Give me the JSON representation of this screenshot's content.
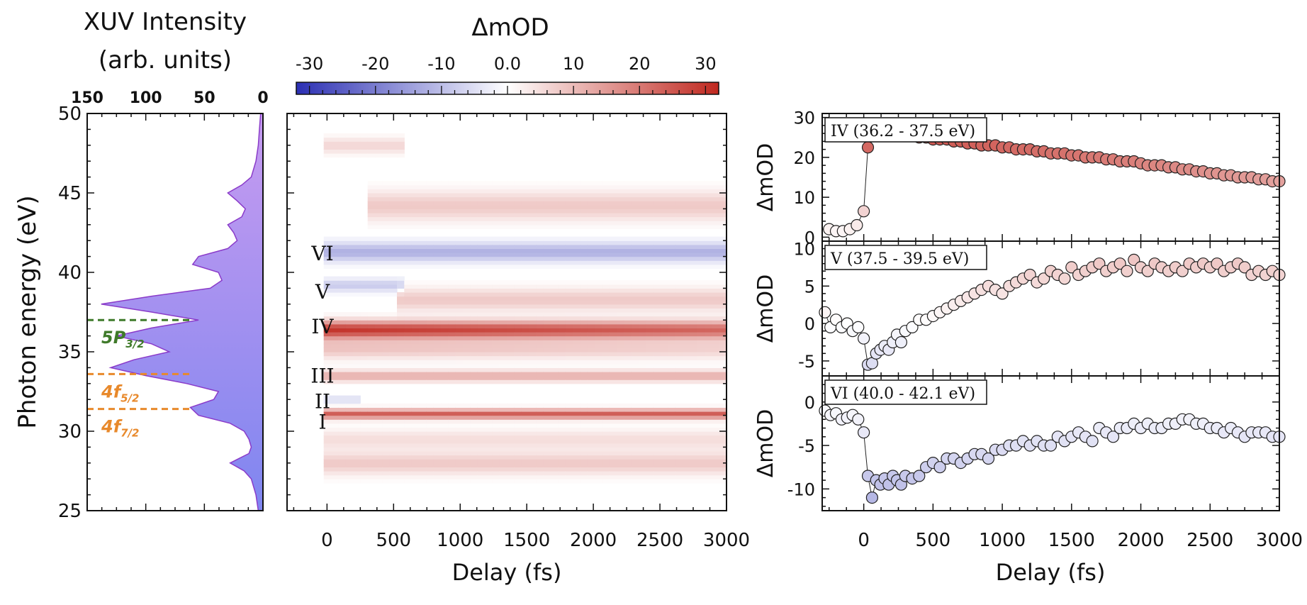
{
  "colors": {
    "neg": "#2b2fb3",
    "mid": "#ffffff",
    "pos": "#c0281f",
    "spectrum_fill_top": "#c79bf0",
    "spectrum_fill_bottom": "#7f86f0",
    "level_5p": "#3f7a2a",
    "level_4f": "#e8892b"
  },
  "chart_data": [
    {
      "type": "area",
      "name": "xuv-spectrum",
      "title": "XUV Intensity",
      "title_line2": "(arb. units)",
      "ylabel": "Photon energy (eV)",
      "xlim": [
        150,
        0
      ],
      "ylim": [
        25,
        50
      ],
      "x_ticks": [
        150,
        100,
        50,
        0
      ],
      "y_ticks": [
        25,
        30,
        35,
        40,
        45,
        50
      ],
      "energy": [
        25,
        26,
        27,
        27.5,
        28,
        28.3,
        28.6,
        29,
        29.5,
        30,
        30.5,
        31,
        31.5,
        32,
        32.5,
        33,
        33.5,
        34,
        34.5,
        35,
        35.5,
        36,
        36.5,
        37,
        37.5,
        38,
        38.5,
        39,
        39.5,
        40,
        40.5,
        41,
        41.5,
        42,
        42.5,
        43,
        43.5,
        44,
        44.5,
        45,
        45.5,
        46,
        47,
        48,
        49,
        50
      ],
      "intensity": [
        4,
        6,
        10,
        16,
        28,
        20,
        12,
        10,
        12,
        16,
        28,
        55,
        62,
        42,
        38,
        65,
        100,
        130,
        110,
        80,
        95,
        125,
        95,
        55,
        95,
        138,
        95,
        45,
        35,
        38,
        60,
        55,
        30,
        22,
        25,
        30,
        18,
        15,
        22,
        30,
        18,
        10,
        6,
        4,
        3,
        2
      ],
      "levels": [
        {
          "label": "5P",
          "sub": "3/2",
          "energy": 37.0,
          "color": "#3f7a2a"
        },
        {
          "label": "4f",
          "sub": "5/2",
          "energy": 33.6,
          "color": "#e8892b"
        },
        {
          "label": "4f",
          "sub": "7/2",
          "energy": 31.4,
          "color": "#e8892b"
        }
      ]
    },
    {
      "type": "heatmap",
      "name": "transient-absorption-map",
      "colorbar_label": "ΔmOD",
      "colorbar_ticks": [
        "-30",
        "-20",
        "-10",
        "0.0",
        "10",
        "20",
        "30"
      ],
      "colorbar_range": [
        -32,
        32
      ],
      "xlabel": "Delay (fs)",
      "xlim": [
        -300,
        3000
      ],
      "ylim": [
        25,
        50
      ],
      "x_ticks": [
        0,
        500,
        1000,
        1500,
        2000,
        2500,
        3000
      ],
      "band_labels": [
        {
          "label": "VI",
          "energy": 41.2
        },
        {
          "label": "V",
          "energy": 38.8
        },
        {
          "label": "IV",
          "energy": 36.6
        },
        {
          "label": "III",
          "energy": 33.5
        },
        {
          "label": "II",
          "energy": 31.9
        },
        {
          "label": "I",
          "energy": 30.6
        }
      ],
      "bands": [
        {
          "center": 48.0,
          "width": 0.5,
          "amp": 6,
          "tmin": 0,
          "tmax": 600
        },
        {
          "center": 44.2,
          "width": 0.9,
          "amp": 8,
          "tmin": 300,
          "tmax": 3000
        },
        {
          "center": 41.3,
          "width": 0.6,
          "amp": -12,
          "tmin": 0,
          "tmax": 3000
        },
        {
          "center": 39.2,
          "width": 0.4,
          "amp": -8,
          "tmin": 0,
          "tmax": 600
        },
        {
          "center": 38.3,
          "width": 0.7,
          "amp": 8,
          "tmin": 500,
          "tmax": 3000
        },
        {
          "center": 36.4,
          "width": 0.55,
          "amp": 30,
          "tmin": 0,
          "tmax": 3000
        },
        {
          "center": 35.2,
          "width": 0.6,
          "amp": 9,
          "tmin": 0,
          "tmax": 3000
        },
        {
          "center": 33.5,
          "width": 0.35,
          "amp": 12,
          "tmin": 0,
          "tmax": 3000
        },
        {
          "center": 32.0,
          "width": 0.2,
          "amp": -6,
          "tmin": 0,
          "tmax": 250
        },
        {
          "center": 31.1,
          "width": 0.3,
          "amp": 24,
          "tmin": 0,
          "tmax": 3000
        },
        {
          "center": 29.5,
          "width": 0.6,
          "amp": 5,
          "tmin": 0,
          "tmax": 3000
        },
        {
          "center": 28.0,
          "width": 0.7,
          "amp": 8,
          "tmin": 0,
          "tmax": 3000
        }
      ]
    },
    {
      "type": "scatter",
      "name": "kinetics-IV",
      "label": "IV (36.2 - 37.5 eV)",
      "ylabel": "ΔmOD",
      "xlim": [
        -300,
        3000
      ],
      "ylim": [
        -1,
        31
      ],
      "y_ticks": [
        0,
        10,
        20,
        30
      ],
      "x": [
        -250,
        -200,
        -150,
        -100,
        -50,
        0,
        30,
        60,
        90,
        120,
        150,
        180,
        210,
        240,
        270,
        300,
        350,
        400,
        450,
        500,
        550,
        600,
        650,
        700,
        750,
        800,
        850,
        900,
        950,
        1000,
        1050,
        1100,
        1150,
        1200,
        1250,
        1300,
        1350,
        1400,
        1450,
        1500,
        1550,
        1600,
        1650,
        1700,
        1750,
        1800,
        1850,
        1900,
        1950,
        2000,
        2050,
        2100,
        2150,
        2200,
        2250,
        2300,
        2350,
        2400,
        2450,
        2500,
        2550,
        2600,
        2650,
        2700,
        2750,
        2800,
        2850,
        2900,
        2950,
        3000
      ],
      "y": [
        2,
        1.5,
        1.5,
        2,
        3,
        6.5,
        22.5,
        26,
        27.5,
        27.5,
        27,
        26.5,
        26.5,
        26,
        26,
        25.5,
        25.5,
        25,
        25,
        24.5,
        24.5,
        24.5,
        24,
        24,
        23.5,
        23.5,
        23,
        23,
        23,
        22.5,
        22.5,
        22,
        22,
        22,
        21.5,
        21.5,
        21,
        21,
        21,
        20.5,
        20.5,
        20,
        20,
        20,
        19.5,
        19.5,
        19,
        19,
        19,
        18.5,
        18,
        18,
        18,
        17.5,
        17.5,
        17,
        17,
        16.5,
        16.5,
        16,
        16,
        15.5,
        15.5,
        15,
        15,
        15,
        14.5,
        14.5,
        14,
        14
      ]
    },
    {
      "type": "scatter",
      "name": "kinetics-V",
      "label": "V (37.5 - 39.5 eV)",
      "ylabel": "ΔmOD",
      "xlim": [
        -300,
        3000
      ],
      "ylim": [
        -7,
        11
      ],
      "y_ticks": [
        -5,
        0,
        5,
        10
      ],
      "x": [
        -280,
        -240,
        -200,
        -160,
        -120,
        -80,
        -40,
        0,
        30,
        60,
        90,
        120,
        150,
        180,
        210,
        240,
        270,
        300,
        350,
        400,
        450,
        500,
        550,
        600,
        650,
        700,
        750,
        800,
        850,
        900,
        950,
        1000,
        1050,
        1100,
        1150,
        1200,
        1250,
        1300,
        1350,
        1400,
        1450,
        1500,
        1550,
        1600,
        1650,
        1700,
        1750,
        1800,
        1850,
        1900,
        1950,
        2000,
        2050,
        2100,
        2150,
        2200,
        2250,
        2300,
        2350,
        2400,
        2450,
        2500,
        2550,
        2600,
        2650,
        2700,
        2750,
        2800,
        2850,
        2900,
        2950,
        3000
      ],
      "y": [
        1.5,
        -0.5,
        0.5,
        -0.5,
        0,
        -1,
        -0.5,
        -2,
        -5.5,
        -5.3,
        -4,
        -3.5,
        -3,
        -3.5,
        -2.5,
        -1.5,
        -2.5,
        -1,
        -0.5,
        0.5,
        0.5,
        1,
        1.5,
        2,
        2.5,
        3,
        3.5,
        4,
        4.5,
        5,
        4.5,
        4,
        5,
        5.5,
        6,
        6.5,
        5.5,
        6,
        7,
        6.5,
        6,
        7.5,
        6.5,
        7,
        7.5,
        8,
        7,
        7.5,
        8,
        7,
        8.5,
        7.5,
        7,
        8,
        7.5,
        7,
        7.5,
        7,
        8,
        7.5,
        8,
        7.5,
        8,
        7,
        7.5,
        8,
        7.5,
        6.5,
        7,
        6.5,
        7,
        6.5
      ]
    },
    {
      "type": "scatter",
      "name": "kinetics-VI",
      "label": "VI (40.0 - 42.1 eV)",
      "ylabel": "ΔmOD",
      "xlim": [
        -300,
        3000
      ],
      "ylim": [
        -12.5,
        3
      ],
      "y_ticks": [
        -10,
        -5,
        0
      ],
      "x": [
        -280,
        -240,
        -200,
        -160,
        -120,
        -80,
        -40,
        0,
        30,
        60,
        90,
        120,
        150,
        180,
        210,
        240,
        270,
        300,
        350,
        400,
        450,
        500,
        550,
        600,
        650,
        700,
        750,
        800,
        850,
        900,
        950,
        1000,
        1050,
        1100,
        1150,
        1200,
        1250,
        1300,
        1350,
        1400,
        1450,
        1500,
        1550,
        1600,
        1650,
        1700,
        1750,
        1800,
        1850,
        1900,
        1950,
        2000,
        2050,
        2100,
        2150,
        2200,
        2250,
        2300,
        2350,
        2400,
        2450,
        2500,
        2550,
        2600,
        2650,
        2700,
        2750,
        2800,
        2850,
        2900,
        2950,
        3000
      ],
      "y": [
        -1,
        -1.5,
        -1.3,
        -2,
        -1.8,
        -1.5,
        -2,
        -3.5,
        -8.5,
        -11,
        -9,
        -9.5,
        -8.8,
        -9.5,
        -8.5,
        -9,
        -9.5,
        -8.5,
        -8.8,
        -8.5,
        -7.5,
        -7,
        -7.5,
        -6.5,
        -6.5,
        -7,
        -6.5,
        -6,
        -6,
        -6.5,
        -5.5,
        -5.5,
        -5,
        -5,
        -4.5,
        -5,
        -4.5,
        -5,
        -5,
        -4,
        -4.5,
        -4,
        -3.5,
        -4,
        -4.5,
        -3,
        -3.5,
        -4,
        -3,
        -3,
        -2.5,
        -3,
        -2.5,
        -3,
        -3,
        -2.5,
        -2.5,
        -2,
        -2,
        -2.5,
        -2.5,
        -3,
        -3,
        -3.5,
        -3,
        -3.5,
        -4,
        -3.5,
        -3.5,
        -3.5,
        -4,
        -4
      ]
    }
  ],
  "shared_xlabel": "Delay (fs)"
}
